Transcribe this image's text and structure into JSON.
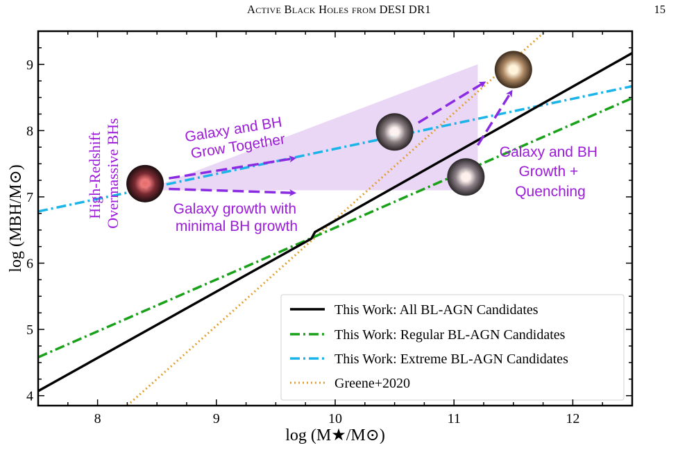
{
  "header": {
    "running_title": "Active Black Holes from DESI DR1",
    "page_number": "15"
  },
  "chart_data": {
    "type": "line",
    "xlabel": "log (M★/M⊙)",
    "ylabel": "log (MBH/M⊙)",
    "xlim": [
      7.5,
      12.5
    ],
    "ylim": [
      3.85,
      9.5
    ],
    "xticks": [
      "8",
      "9",
      "10",
      "11",
      "12"
    ],
    "yticks": [
      "4",
      "5",
      "6",
      "7",
      "8",
      "9"
    ],
    "grid": false,
    "legend_position": "bottom-right",
    "series": [
      {
        "name": "This Work: All BL-AGN Candidates",
        "style": "solid",
        "color": "#000000",
        "x": [
          7.5,
          9.8,
          9.83,
          12.5
        ],
        "y": [
          4.07,
          6.37,
          6.47,
          9.17
        ]
      },
      {
        "name": "This Work: Regular BL-AGN Candidates",
        "style": "dashdot",
        "color": "#1aa11a",
        "x": [
          7.5,
          12.5
        ],
        "y": [
          4.58,
          8.49
        ]
      },
      {
        "name": "This Work: Extreme BL-AGN Candidates",
        "style": "dashdot",
        "color": "#1ab4e8",
        "x": [
          7.5,
          12.5
        ],
        "y": [
          6.78,
          8.67
        ]
      },
      {
        "name": "Greene+2020",
        "style": "dotted",
        "color": "#e0a030",
        "x": [
          8.25,
          11.8
        ],
        "y": [
          3.85,
          9.55
        ]
      }
    ],
    "shaded_region": {
      "color": "#ead6f5",
      "x": [
        8.4,
        11.2,
        11.2,
        8.4
      ],
      "y": [
        7.1,
        9.0,
        7.1,
        7.1
      ]
    },
    "galaxies": [
      {
        "x": 8.4,
        "y": 7.2,
        "core": "#e86a6a",
        "mid": "#7a2a32",
        "edge": "#1a0e10"
      },
      {
        "x": 10.5,
        "y": 7.98,
        "core": "#fff4f0",
        "mid": "#8a7f82",
        "edge": "#2a2426"
      },
      {
        "x": 11.1,
        "y": 7.3,
        "core": "#fff2ec",
        "mid": "#8c8088",
        "edge": "#2a2628"
      },
      {
        "x": 11.5,
        "y": 8.92,
        "core": "#fff3d8",
        "mid": "#b08a66",
        "edge": "#3a2a1c"
      }
    ],
    "arrows": [
      {
        "from": [
          8.6,
          7.28
        ],
        "to": [
          9.65,
          7.58
        ]
      },
      {
        "from": [
          8.6,
          7.12
        ],
        "to": [
          9.65,
          7.06
        ]
      },
      {
        "from": [
          10.7,
          8.12
        ],
        "to": [
          11.25,
          8.72
        ]
      },
      {
        "from": [
          11.2,
          7.78
        ],
        "to": [
          11.48,
          8.58
        ]
      }
    ],
    "annotations": {
      "high_redshift": [
        "High-Redshift",
        "Overmassive BHs"
      ],
      "grow_together": [
        "Galaxy and BH",
        "Grow Together"
      ],
      "galaxy_growth": [
        "Galaxy growth with",
        "minimal BH growth"
      ],
      "quenching": [
        "Galaxy and BH",
        "Growth +",
        "Quenching"
      ]
    },
    "annotation_color": "#9b1bd8",
    "arrow_color": "#8a2be2"
  }
}
